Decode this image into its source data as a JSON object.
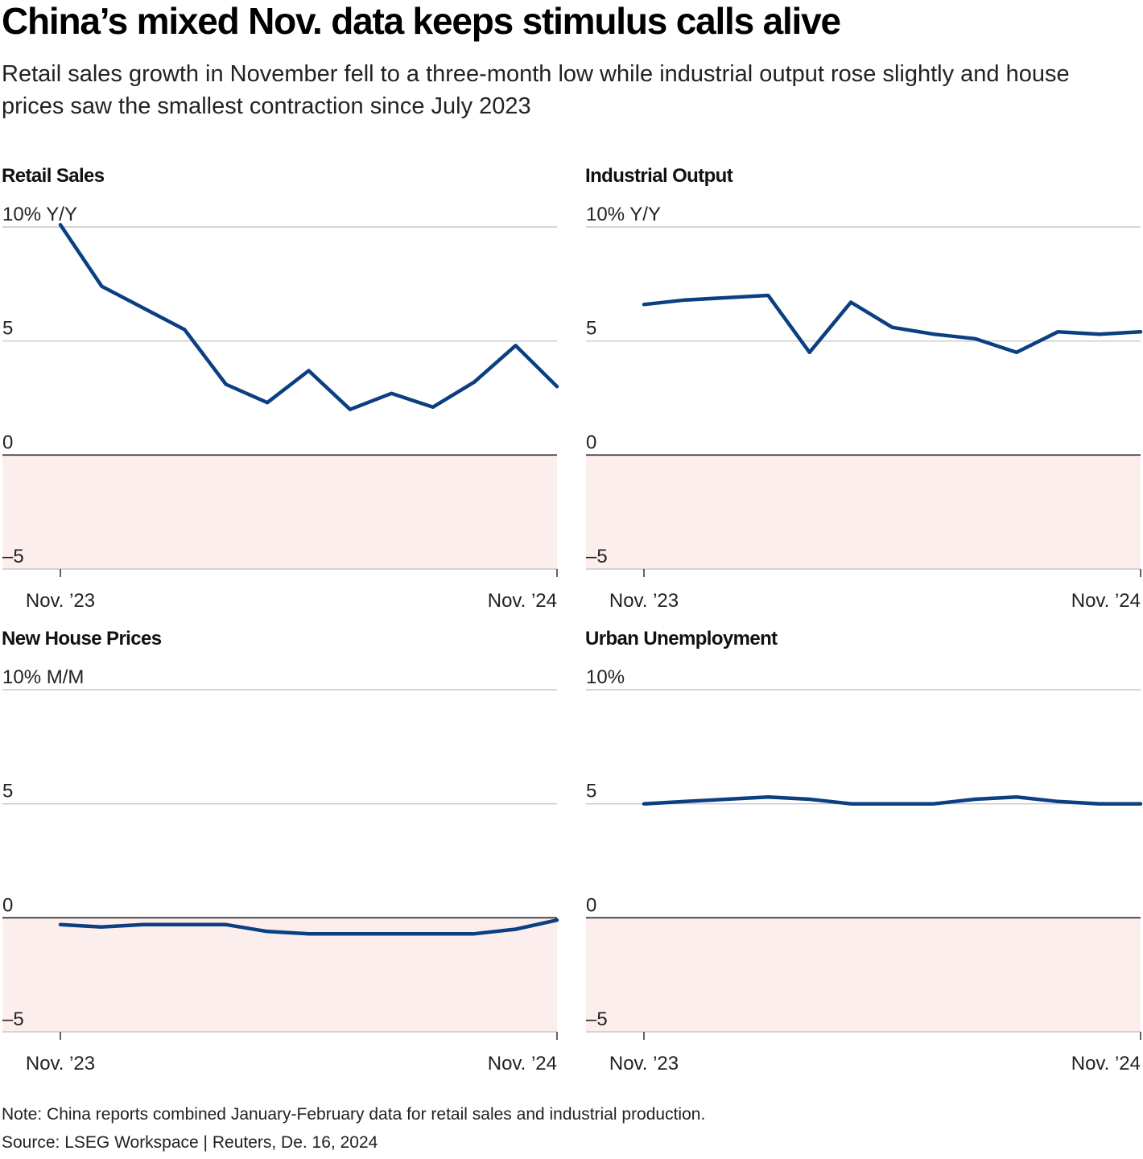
{
  "header": {
    "title": "China’s mixed Nov. data keeps stimulus calls alive",
    "subtitle": "Retail sales growth in November fell to a three-month low while industrial output rose slightly and house prices saw the smallest contraction since July 2023"
  },
  "footer": {
    "note": "Note: China reports combined January-February data for retail sales and industrial production.",
    "source": "Source: LSEG Workspace | Reuters, De. 16, 2024"
  },
  "colors": {
    "line": "#0b3f82",
    "negative_fill": "#fdeeee",
    "grid": "#c8c8c8",
    "zero_line": "#222222"
  },
  "chart_data": [
    {
      "type": "line",
      "title": "Retail Sales",
      "y_tick_labels": [
        "10% Y/Y",
        "5",
        "0",
        "–5"
      ],
      "y_ticks": [
        10,
        5,
        0,
        -5
      ],
      "ylim": [
        -5,
        10
      ],
      "x_labels": [
        "Nov. ’23",
        "Nov. ’24"
      ],
      "x": [
        0,
        1,
        3,
        4,
        5,
        6,
        7,
        8,
        9,
        10,
        11,
        12
      ],
      "values": [
        10.1,
        7.4,
        5.5,
        3.1,
        2.3,
        3.7,
        2.0,
        2.7,
        2.1,
        3.2,
        4.8,
        3.0
      ],
      "grid": true
    },
    {
      "type": "line",
      "title": "Industrial Output",
      "y_tick_labels": [
        "10% Y/Y",
        "5",
        "0",
        "–5"
      ],
      "y_ticks": [
        10,
        5,
        0,
        -5
      ],
      "ylim": [
        -5,
        10
      ],
      "x_labels": [
        "Nov. ’23",
        "Nov. ’24"
      ],
      "x": [
        0,
        1,
        3,
        4,
        5,
        6,
        7,
        8,
        9,
        10,
        11,
        12
      ],
      "values": [
        6.6,
        6.8,
        7.0,
        4.5,
        6.7,
        5.6,
        5.3,
        5.1,
        4.5,
        5.4,
        5.3,
        5.4
      ],
      "grid": true
    },
    {
      "type": "line",
      "title": "New House Prices",
      "y_tick_labels": [
        "10% M/M",
        "5",
        "0",
        "–5"
      ],
      "y_ticks": [
        10,
        5,
        0,
        -5
      ],
      "ylim": [
        -5,
        10
      ],
      "x_labels": [
        "Nov. ’23",
        "Nov. ’24"
      ],
      "x": [
        0,
        1,
        2,
        3,
        4,
        5,
        6,
        7,
        8,
        9,
        10,
        11,
        12
      ],
      "values": [
        -0.3,
        -0.4,
        -0.3,
        -0.3,
        -0.3,
        -0.6,
        -0.7,
        -0.7,
        -0.7,
        -0.7,
        -0.7,
        -0.5,
        -0.1
      ],
      "grid": true
    },
    {
      "type": "line",
      "title": "Urban Unemployment",
      "y_tick_labels": [
        "10%",
        "5",
        "0",
        "–5"
      ],
      "y_ticks": [
        10,
        5,
        0,
        -5
      ],
      "ylim": [
        -5,
        10
      ],
      "x_labels": [
        "Nov. ’23",
        "Nov. ’24"
      ],
      "x": [
        0,
        1,
        2,
        3,
        4,
        5,
        6,
        7,
        8,
        9,
        10,
        11,
        12
      ],
      "values": [
        5.0,
        5.1,
        5.2,
        5.3,
        5.2,
        5.0,
        5.0,
        5.0,
        5.2,
        5.3,
        5.1,
        5.0,
        5.0
      ],
      "grid": true
    }
  ]
}
